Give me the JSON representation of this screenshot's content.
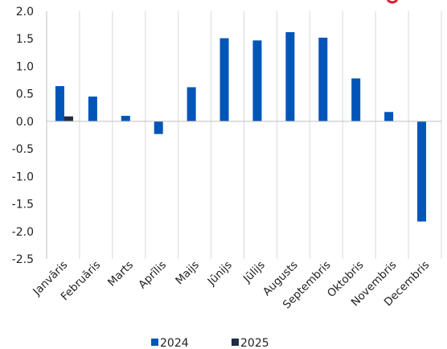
{
  "chart_data": {
    "type": "bar",
    "title": "",
    "xlabel": "",
    "ylabel": "",
    "categories": [
      "Janvāris",
      "Februāris",
      "Marts",
      "Aprīlis",
      "Maijs",
      "Jūnijs",
      "Jūlijs",
      "Augusts",
      "Septembris",
      "Oktobris",
      "Novembris",
      "Decembris"
    ],
    "series": [
      {
        "name": "2024",
        "color": "#0055b8",
        "values": [
          0.64,
          0.45,
          0.1,
          -0.23,
          0.62,
          1.51,
          1.47,
          1.62,
          1.52,
          0.78,
          0.17,
          -1.82
        ]
      },
      {
        "name": "2025",
        "color": "#1f2d45",
        "values": [
          0.09,
          null,
          null,
          null,
          null,
          null,
          null,
          null,
          null,
          null,
          null,
          null
        ]
      }
    ],
    "ylim": [
      -2.5,
      2.0
    ],
    "yticks": [
      "2.0",
      "1.5",
      "1.0",
      "0.5",
      "0.0",
      "-0.5",
      "-1.0",
      "-1.5",
      "-2.0",
      "-2.5"
    ],
    "grid": {
      "vertical_category_separators": true,
      "horizontal": false
    },
    "legend": "bottom-center"
  }
}
